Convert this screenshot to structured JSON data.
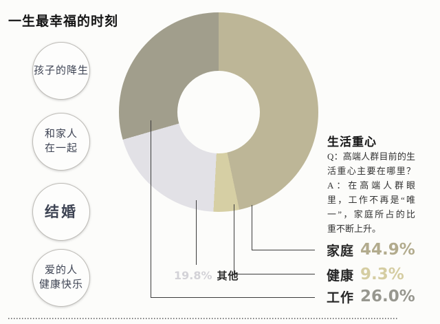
{
  "page": {
    "title": "一生最幸福的时刻"
  },
  "happy_moments": [
    {
      "lines": [
        "孩子的降生"
      ]
    },
    {
      "lines": [
        "和家人",
        "在一起"
      ]
    },
    {
      "lines": [
        "结婚"
      ]
    },
    {
      "lines": [
        "爱的人",
        "健康快乐"
      ]
    }
  ],
  "qa": {
    "heading": "生活重心",
    "lines": [
      "Q：高端人群目前的生",
      "活重心主要在哪里？",
      "A：在高端人群眼",
      "里，工作不再是“唯",
      "一”，家庭所占的比",
      "重不断上升。"
    ]
  },
  "legend": [
    {
      "label": "家庭",
      "value": "44.9%",
      "color": "#b2ab8d"
    },
    {
      "label": "健康",
      "value": "9.3%",
      "color": "#d5cda2"
    },
    {
      "label": "工作",
      "value": "26.0%",
      "color": "#97978f"
    }
  ],
  "other_label": {
    "value": "19.8%",
    "label": "其他",
    "color": "#d3d2d7"
  },
  "chart_data": {
    "type": "pie",
    "subtype": "donut",
    "title": "生活重心",
    "categories": [
      "家庭",
      "健康",
      "其他",
      "工作"
    ],
    "values": [
      44.9,
      9.3,
      19.8,
      26.0
    ],
    "unit": "%",
    "legend_position": "bottom-right",
    "segments": [
      {
        "label": "家庭",
        "value": 44.9,
        "color": "#bdb697",
        "start_deg": 0,
        "end_deg": 168
      },
      {
        "label": "健康",
        "value": 9.3,
        "color": "#d6cfa4",
        "start_deg": 168,
        "end_deg": 183
      },
      {
        "label": "其他",
        "value": 19.8,
        "color": "#e2e1e6",
        "start_deg": 183,
        "end_deg": 254
      },
      {
        "label": "工作",
        "value": 26.0,
        "color": "#a19e8c",
        "start_deg": 254,
        "end_deg": 360
      }
    ]
  }
}
